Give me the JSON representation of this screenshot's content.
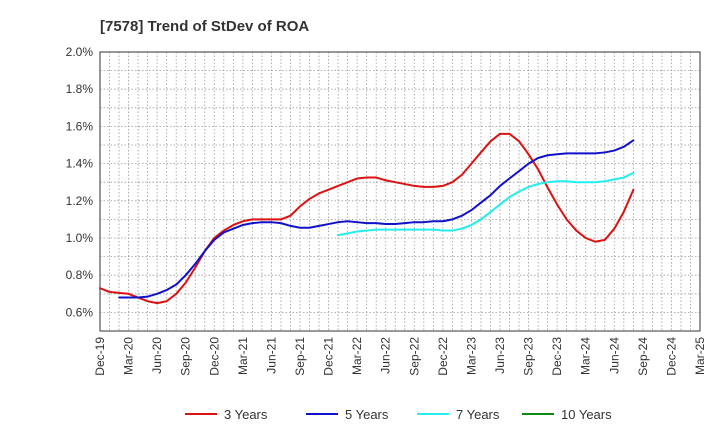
{
  "chart_data": {
    "type": "line",
    "title": "[7578]  Trend of StDev of ROA",
    "xlabel": "",
    "ylabel": "",
    "x": [
      "Dec-19",
      "Mar-20",
      "Jun-20",
      "Sep-20",
      "Dec-20",
      "Mar-21",
      "Jun-21",
      "Sep-21",
      "Dec-21",
      "Mar-22",
      "Jun-22",
      "Sep-22",
      "Dec-22",
      "Mar-23",
      "Jun-23",
      "Sep-23",
      "Dec-23",
      "Mar-24",
      "Jun-24",
      "Sep-24",
      "Dec-24",
      "Mar-25"
    ],
    "x_ticks": [
      "Dec-19",
      "Mar-20",
      "Jun-20",
      "Sep-20",
      "Dec-20",
      "Mar-21",
      "Jun-21",
      "Sep-21",
      "Dec-21",
      "Mar-22",
      "Jun-22",
      "Sep-22",
      "Dec-22",
      "Mar-23",
      "Jun-23",
      "Sep-23",
      "Dec-23",
      "Mar-24",
      "Jun-24",
      "Sep-24",
      "Dec-24",
      "Mar-25"
    ],
    "y_ticks": [
      "0.6%",
      "0.8%",
      "1.0%",
      "1.2%",
      "1.4%",
      "1.6%",
      "1.8%",
      "2.0%"
    ],
    "y_tick_values": [
      0.6,
      0.8,
      1.0,
      1.2,
      1.4,
      1.6,
      1.8,
      2.0
    ],
    "ylim": [
      0.5,
      2.0
    ],
    "grid": true,
    "legend_position": "bottom",
    "series": [
      {
        "name": "3 Years",
        "color": "#dd1111",
        "points": [
          [
            0,
            0.73
          ],
          [
            0.33,
            0.71
          ],
          [
            0.67,
            0.705
          ],
          [
            1,
            0.7
          ],
          [
            1.33,
            0.68
          ],
          [
            1.67,
            0.66
          ],
          [
            2,
            0.65
          ],
          [
            2.33,
            0.66
          ],
          [
            2.67,
            0.7
          ],
          [
            3,
            0.76
          ],
          [
            3.33,
            0.84
          ],
          [
            3.67,
            0.93
          ],
          [
            4,
            1.0
          ],
          [
            4.33,
            1.04
          ],
          [
            4.67,
            1.07
          ],
          [
            5,
            1.09
          ],
          [
            5.33,
            1.1
          ],
          [
            5.67,
            1.1
          ],
          [
            6,
            1.1
          ],
          [
            6.33,
            1.1
          ],
          [
            6.67,
            1.12
          ],
          [
            7,
            1.17
          ],
          [
            7.33,
            1.21
          ],
          [
            7.67,
            1.24
          ],
          [
            8,
            1.26
          ],
          [
            8.33,
            1.28
          ],
          [
            8.67,
            1.3
          ],
          [
            9,
            1.32
          ],
          [
            9.33,
            1.325
          ],
          [
            9.67,
            1.325
          ],
          [
            10,
            1.31
          ],
          [
            10.33,
            1.3
          ],
          [
            10.67,
            1.29
          ],
          [
            11,
            1.28
          ],
          [
            11.33,
            1.275
          ],
          [
            11.67,
            1.275
          ],
          [
            12,
            1.28
          ],
          [
            12.33,
            1.3
          ],
          [
            12.67,
            1.34
          ],
          [
            13,
            1.4
          ],
          [
            13.33,
            1.46
          ],
          [
            13.67,
            1.52
          ],
          [
            14,
            1.56
          ],
          [
            14.33,
            1.56
          ],
          [
            14.67,
            1.52
          ],
          [
            15,
            1.45
          ],
          [
            15.33,
            1.37
          ],
          [
            15.67,
            1.27
          ],
          [
            16,
            1.18
          ],
          [
            16.33,
            1.1
          ],
          [
            16.67,
            1.04
          ],
          [
            17,
            1.0
          ],
          [
            17.33,
            0.98
          ],
          [
            17.67,
            0.99
          ],
          [
            18,
            1.05
          ],
          [
            18.33,
            1.14
          ],
          [
            18.67,
            1.26
          ]
        ]
      },
      {
        "name": "5 Years",
        "color": "#1111cc",
        "points": [
          [
            0.67,
            0.68
          ],
          [
            1,
            0.68
          ],
          [
            1.33,
            0.68
          ],
          [
            1.67,
            0.685
          ],
          [
            2,
            0.7
          ],
          [
            2.33,
            0.72
          ],
          [
            2.67,
            0.75
          ],
          [
            3,
            0.8
          ],
          [
            3.33,
            0.86
          ],
          [
            3.67,
            0.93
          ],
          [
            4,
            0.99
          ],
          [
            4.33,
            1.03
          ],
          [
            4.67,
            1.05
          ],
          [
            5,
            1.07
          ],
          [
            5.33,
            1.08
          ],
          [
            5.67,
            1.085
          ],
          [
            6,
            1.085
          ],
          [
            6.33,
            1.08
          ],
          [
            6.67,
            1.065
          ],
          [
            7,
            1.055
          ],
          [
            7.33,
            1.055
          ],
          [
            7.67,
            1.065
          ],
          [
            8,
            1.075
          ],
          [
            8.33,
            1.085
          ],
          [
            8.67,
            1.09
          ],
          [
            9,
            1.085
          ],
          [
            9.33,
            1.08
          ],
          [
            9.67,
            1.08
          ],
          [
            10,
            1.075
          ],
          [
            10.33,
            1.075
          ],
          [
            10.67,
            1.08
          ],
          [
            11,
            1.085
          ],
          [
            11.33,
            1.085
          ],
          [
            11.67,
            1.09
          ],
          [
            12,
            1.09
          ],
          [
            12.33,
            1.1
          ],
          [
            12.67,
            1.12
          ],
          [
            13,
            1.15
          ],
          [
            13.33,
            1.19
          ],
          [
            13.67,
            1.23
          ],
          [
            14,
            1.28
          ],
          [
            14.33,
            1.32
          ],
          [
            14.67,
            1.36
          ],
          [
            15,
            1.4
          ],
          [
            15.33,
            1.43
          ],
          [
            15.67,
            1.445
          ],
          [
            16,
            1.45
          ],
          [
            16.33,
            1.455
          ],
          [
            16.67,
            1.455
          ],
          [
            17,
            1.455
          ],
          [
            17.33,
            1.455
          ],
          [
            17.67,
            1.46
          ],
          [
            18,
            1.47
          ],
          [
            18.33,
            1.49
          ],
          [
            18.67,
            1.525
          ]
        ]
      },
      {
        "name": "7 Years",
        "color": "#22eeee",
        "points": [
          [
            8.33,
            1.015
          ],
          [
            8.67,
            1.025
          ],
          [
            9,
            1.035
          ],
          [
            9.33,
            1.04
          ],
          [
            9.67,
            1.045
          ],
          [
            10,
            1.045
          ],
          [
            10.33,
            1.045
          ],
          [
            10.67,
            1.045
          ],
          [
            11,
            1.045
          ],
          [
            11.33,
            1.045
          ],
          [
            11.67,
            1.045
          ],
          [
            12,
            1.04
          ],
          [
            12.33,
            1.04
          ],
          [
            12.67,
            1.05
          ],
          [
            13,
            1.07
          ],
          [
            13.33,
            1.1
          ],
          [
            13.67,
            1.14
          ],
          [
            14,
            1.18
          ],
          [
            14.33,
            1.22
          ],
          [
            14.67,
            1.25
          ],
          [
            15,
            1.275
          ],
          [
            15.33,
            1.29
          ],
          [
            15.67,
            1.3
          ],
          [
            16,
            1.305
          ],
          [
            16.33,
            1.305
          ],
          [
            16.67,
            1.3
          ],
          [
            17,
            1.3
          ],
          [
            17.33,
            1.3
          ],
          [
            17.67,
            1.305
          ],
          [
            18,
            1.315
          ],
          [
            18.33,
            1.325
          ],
          [
            18.67,
            1.35
          ]
        ]
      },
      {
        "name": "10 Years",
        "color": "#118811",
        "points": []
      }
    ]
  }
}
